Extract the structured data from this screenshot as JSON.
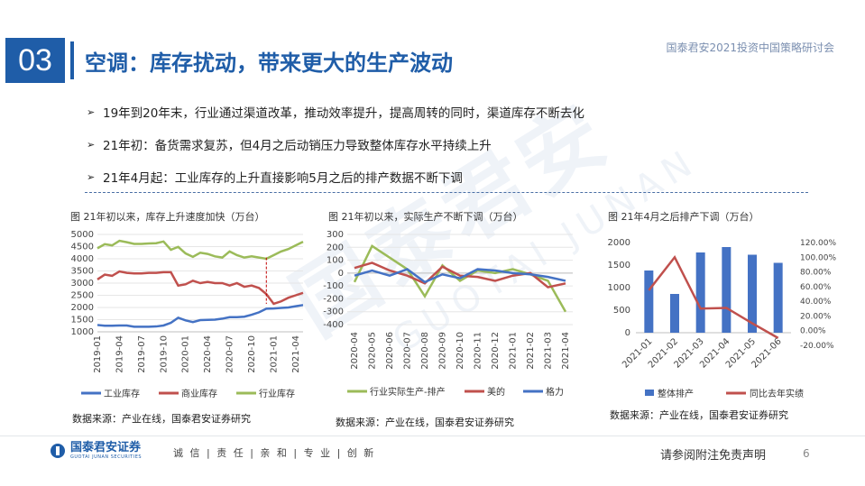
{
  "header": {
    "section_number": "03",
    "title": "空调：库存扰动，带来更大的生产波动",
    "conference": "国泰君安2021投资中国策略研讨会"
  },
  "bullets": [
    "19年到20年末，行业通过渠道改革，推动效率提升，提高周转的同时，渠道库存不断去化",
    "21年初：备货需求复苏，但4月之后动销压力导致整体库存水平持续上升",
    "21年4月起：工业库存的上升直接影响5月之后的排产数据不断下调"
  ],
  "bullet_marker": "➢",
  "watermark": {
    "cn": "国泰君安",
    "en": "GUOTAI JUNAN"
  },
  "chart_data": [
    {
      "type": "line",
      "title": "图 21年初以来，库存上升速度加快（万台）",
      "source": "数据来源：产业在线，国泰君安证券研究",
      "ylim": [
        1000,
        5000
      ],
      "yticks": [
        "1000",
        "1500",
        "2000",
        "2500",
        "3000",
        "3500",
        "4000",
        "4500",
        "5000"
      ],
      "xticks": [
        "2019-01",
        "2019-04",
        "2019-07",
        "2019-10",
        "2020-01",
        "2020-04",
        "2020-07",
        "2020-10",
        "2021-01",
        "2021-04"
      ],
      "x": [
        "2019-01",
        "2019-02",
        "2019-03",
        "2019-04",
        "2019-05",
        "2019-06",
        "2019-07",
        "2019-08",
        "2019-09",
        "2019-10",
        "2019-11",
        "2019-12",
        "2020-01",
        "2020-02",
        "2020-03",
        "2020-04",
        "2020-05",
        "2020-06",
        "2020-07",
        "2020-08",
        "2020-09",
        "2020-10",
        "2020-11",
        "2020-12",
        "2021-01",
        "2021-02",
        "2021-03",
        "2021-04",
        "2021-05"
      ],
      "series": [
        {
          "name": "工业库存",
          "color": "#4472c4",
          "values": [
            1280,
            1250,
            1250,
            1260,
            1260,
            1210,
            1210,
            1210,
            1220,
            1260,
            1370,
            1580,
            1470,
            1400,
            1480,
            1490,
            1500,
            1540,
            1600,
            1600,
            1620,
            1700,
            1800,
            1950,
            1960,
            1980,
            2000,
            2050,
            2100
          ]
        },
        {
          "name": "商业库存",
          "color": "#c0504d",
          "values": [
            3150,
            3350,
            3300,
            3480,
            3420,
            3400,
            3400,
            3420,
            3420,
            3450,
            3450,
            2900,
            2950,
            3100,
            3000,
            3050,
            3000,
            3000,
            2900,
            3000,
            2850,
            2900,
            2800,
            2550,
            2150,
            2250,
            2400,
            2500,
            2600
          ]
        },
        {
          "name": "行业库存",
          "color": "#9bbb59",
          "values": [
            4430,
            4600,
            4550,
            4740,
            4680,
            4610,
            4610,
            4630,
            4640,
            4710,
            4370,
            4490,
            4220,
            4080,
            4250,
            4200,
            4100,
            4050,
            4300,
            4150,
            4050,
            4100,
            4050,
            4000,
            4150,
            4300,
            4400,
            4550,
            4700
          ]
        }
      ],
      "marker_line_at": "2020-12"
    },
    {
      "type": "line",
      "title": "图 21年初以来，实际生产不断下调（万台）",
      "source": "数据来源：产业在线，国泰君安证券研究",
      "ylim": [
        -400,
        300
      ],
      "yticks": [
        "-400",
        "-300",
        "-200",
        "-100",
        "0",
        "100",
        "200",
        "300"
      ],
      "x": [
        "2020-04",
        "2020-05",
        "2020-06",
        "2020-07",
        "2020-08",
        "2020-09",
        "2020-10",
        "2020-11",
        "2020-12",
        "2021-01",
        "2021-02",
        "2021-03",
        "2021-04"
      ],
      "series": [
        {
          "name": "行业实际生产-排产",
          "color": "#9bbb59",
          "values": [
            -70,
            210,
            120,
            30,
            -180,
            60,
            -60,
            20,
            0,
            30,
            -10,
            -60,
            -300
          ]
        },
        {
          "name": "美的",
          "color": "#c0504d",
          "values": [
            40,
            80,
            20,
            -20,
            -80,
            50,
            -20,
            -30,
            -60,
            -20,
            0,
            -110,
            -80
          ]
        },
        {
          "name": "格力",
          "color": "#4472c4",
          "values": [
            -20,
            20,
            -20,
            30,
            -70,
            -10,
            -40,
            30,
            20,
            0,
            -10,
            -30,
            -60
          ]
        }
      ]
    },
    {
      "type": "bar",
      "title": "图 21年4月之后排产下调（万台）",
      "source": "数据来源：产业在线，国泰君安证券研究",
      "categories": [
        "2021-01",
        "2021-02",
        "2021-03",
        "2021-04",
        "2021-05",
        "2021-06"
      ],
      "ylim": [
        0,
        2000
      ],
      "yticks": [
        "0",
        "500",
        "1000",
        "1500",
        "2000"
      ],
      "y2lim": [
        -20,
        120
      ],
      "y2ticks": [
        "-20.00%",
        "0.00%",
        "20.00%",
        "40.00%",
        "60.00%",
        "80.00%",
        "100.00%",
        "120.00%"
      ],
      "series": [
        {
          "name": "整体排产",
          "color": "#4472c4",
          "kind": "bar",
          "values": [
            1380,
            860,
            1780,
            1900,
            1730,
            1550
          ]
        },
        {
          "name": "同比去年实绩",
          "color": "#c0504d",
          "kind": "line",
          "axis": "right",
          "values": [
            55,
            100,
            30,
            31,
            10,
            -10
          ]
        }
      ]
    }
  ],
  "footer": {
    "logo_cn": "国泰君安证券",
    "logo_en": "GUOTAI JUNAN SECURITIES",
    "motto": "诚 信 | 责 任 | 亲 和 | 专 业 | 创 新",
    "disclaimer": "请参阅附注免责声明",
    "page": "6"
  }
}
